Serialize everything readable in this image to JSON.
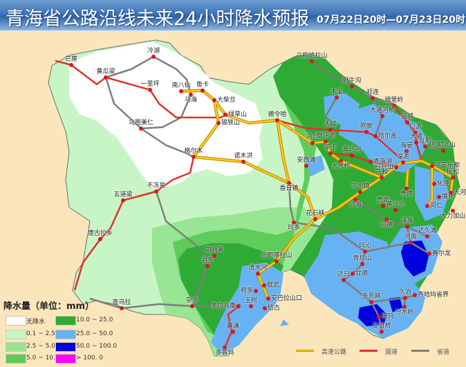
{
  "header": {
    "title": "青海省公路沿线未来24小时降水预报",
    "period": "07月22日20时—07月23日20时"
  },
  "legend": {
    "title": "降水量（单位：mm）",
    "classes": [
      {
        "label": "无降水",
        "color": "#ffffff"
      },
      {
        "label": "0.1 ~ 2.5",
        "color": "#c8f5c6"
      },
      {
        "label": "2.5 ~ 5.0",
        "color": "#98e594"
      },
      {
        "label": "5.0 ~ 10.0",
        "color": "#5dcc5b"
      },
      {
        "label": "10.0 ~ 25.0",
        "color": "#2faa34"
      },
      {
        "label": "25.0 ~ 50.0",
        "color": "#66b2f2"
      },
      {
        "label": "50.0 ~ 100.0",
        "color": "#0000dc"
      },
      {
        "label": "> 100. 0",
        "color": "#ff00ff"
      }
    ],
    "roads": [
      {
        "label": "高速公路",
        "color": "#f5b800"
      },
      {
        "label": "国道",
        "color": "#e0332a"
      },
      {
        "label": "省道",
        "color": "#7d7d7d"
      }
    ]
  },
  "map": {
    "background_color": "#fbe6bb",
    "places": [
      "芒崖",
      "冷湖",
      "黄瓜梁",
      "一里坪",
      "南八仙",
      "马海",
      "鱼卡",
      "大柴旦",
      "绿草山",
      "锡铁山",
      "乌图美仁",
      "格尔木",
      "诺木洪",
      "香日德",
      "不冻泉",
      "五道梁",
      "唐古拉乡",
      "查乌拉",
      "德令哈",
      "二指哈拉山",
      "野牛沟",
      "木里",
      "祁连",
      "峨堡岭",
      "大通河桥",
      "岗城",
      "门源",
      "大通",
      "互助",
      "互助北山",
      "海晏",
      "湟源",
      "日月山",
      "平安乐都",
      "民和",
      "化隆",
      "循化",
      "大河家",
      "大力加山",
      "贵德",
      "同仁",
      "共和",
      "天峻",
      "刚察",
      "哈尔盖",
      "乌兰",
      "察汗诺",
      "茶卡",
      "黑马河",
      "青海湖",
      "大水桥",
      "安西滩",
      "河卡镇",
      "兴海",
      "贵南",
      "黄沙头",
      "同德",
      "泽库",
      "达久滩",
      "河南",
      "赛尔龙",
      "玛沁",
      "青珍山",
      "甘德",
      "达日",
      "久治",
      "齐哈玛省界",
      "分水岭",
      "多贡麻",
      "班玛",
      "友谊桥",
      "花石峡",
      "玛多",
      "巴颜喀拉山",
      "清水河",
      "称多",
      "歇武",
      "安巴拉山口",
      "结古",
      "玉树",
      "多拉马康",
      "杂多",
      "囊谦",
      "多普玛",
      "治多",
      "曲麻莱"
    ]
  }
}
